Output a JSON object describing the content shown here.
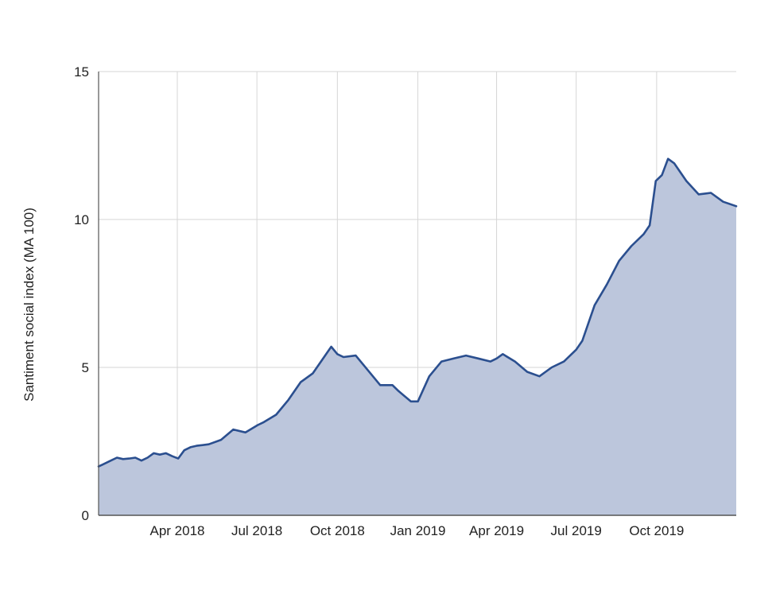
{
  "chart_data": {
    "type": "area",
    "ylabel": "Santiment social index (MA 100)",
    "xlabel": "",
    "x_range": [
      "2018-01-01",
      "2019-12-31"
    ],
    "ylim": [
      0,
      15
    ],
    "y_ticks": [
      0,
      5,
      10,
      15
    ],
    "x_ticks": [
      {
        "date": "2018-04-01",
        "label": "Apr 2018"
      },
      {
        "date": "2018-07-01",
        "label": "Jul 2018"
      },
      {
        "date": "2018-10-01",
        "label": "Oct 2018"
      },
      {
        "date": "2019-01-01",
        "label": "Jan 2019"
      },
      {
        "date": "2019-04-01",
        "label": "Apr 2019"
      },
      {
        "date": "2019-07-01",
        "label": "Jul 2019"
      },
      {
        "date": "2019-10-01",
        "label": "Oct 2019"
      }
    ],
    "grid": true,
    "legend": "none",
    "colors": {
      "line": "#2b4f8f",
      "fill": "#bcc6dc",
      "grid": "#d6d6d6",
      "axis": "#555555"
    },
    "series": [
      {
        "x": [
          "2018-01-01",
          "2018-01-08",
          "2018-01-15",
          "2018-01-22",
          "2018-01-29",
          "2018-02-05",
          "2018-02-12",
          "2018-02-19",
          "2018-02-26",
          "2018-03-05",
          "2018-03-12",
          "2018-03-19",
          "2018-03-26",
          "2018-04-02",
          "2018-04-09",
          "2018-04-16",
          "2018-04-23",
          "2018-05-07",
          "2018-05-21",
          "2018-06-04",
          "2018-06-18",
          "2018-07-02",
          "2018-07-09",
          "2018-07-23",
          "2018-08-06",
          "2018-08-20",
          "2018-09-03",
          "2018-09-10",
          "2018-09-17",
          "2018-09-24",
          "2018-10-01",
          "2018-10-08",
          "2018-10-22",
          "2018-11-05",
          "2018-11-19",
          "2018-12-03",
          "2018-12-10",
          "2018-12-24",
          "2019-01-01",
          "2019-01-14",
          "2019-01-28",
          "2019-02-11",
          "2019-02-25",
          "2019-03-11",
          "2019-03-25",
          "2019-04-01",
          "2019-04-08",
          "2019-04-22",
          "2019-05-06",
          "2019-05-20",
          "2019-06-03",
          "2019-06-17",
          "2019-07-01",
          "2019-07-08",
          "2019-07-22",
          "2019-08-05",
          "2019-08-19",
          "2019-09-02",
          "2019-09-16",
          "2019-09-23",
          "2019-09-30",
          "2019-10-07",
          "2019-10-14",
          "2019-10-21",
          "2019-11-04",
          "2019-11-18",
          "2019-12-02",
          "2019-12-16",
          "2019-12-31"
        ],
        "y": [
          1.65,
          1.75,
          1.85,
          1.95,
          1.9,
          1.92,
          1.95,
          1.85,
          1.95,
          2.1,
          2.05,
          2.1,
          2.0,
          1.92,
          2.2,
          2.3,
          2.35,
          2.4,
          2.55,
          2.9,
          2.8,
          3.05,
          3.15,
          3.4,
          3.9,
          4.5,
          4.8,
          5.1,
          5.4,
          5.7,
          5.45,
          5.35,
          5.4,
          4.9,
          4.4,
          4.4,
          4.2,
          3.85,
          3.85,
          4.7,
          5.2,
          5.3,
          5.4,
          5.3,
          5.2,
          5.3,
          5.45,
          5.2,
          4.85,
          4.7,
          5.0,
          5.2,
          5.6,
          5.9,
          7.1,
          7.8,
          8.6,
          9.1,
          9.5,
          9.8,
          11.3,
          11.5,
          12.05,
          11.9,
          11.3,
          10.85,
          10.9,
          10.6,
          10.45
        ]
      }
    ]
  }
}
